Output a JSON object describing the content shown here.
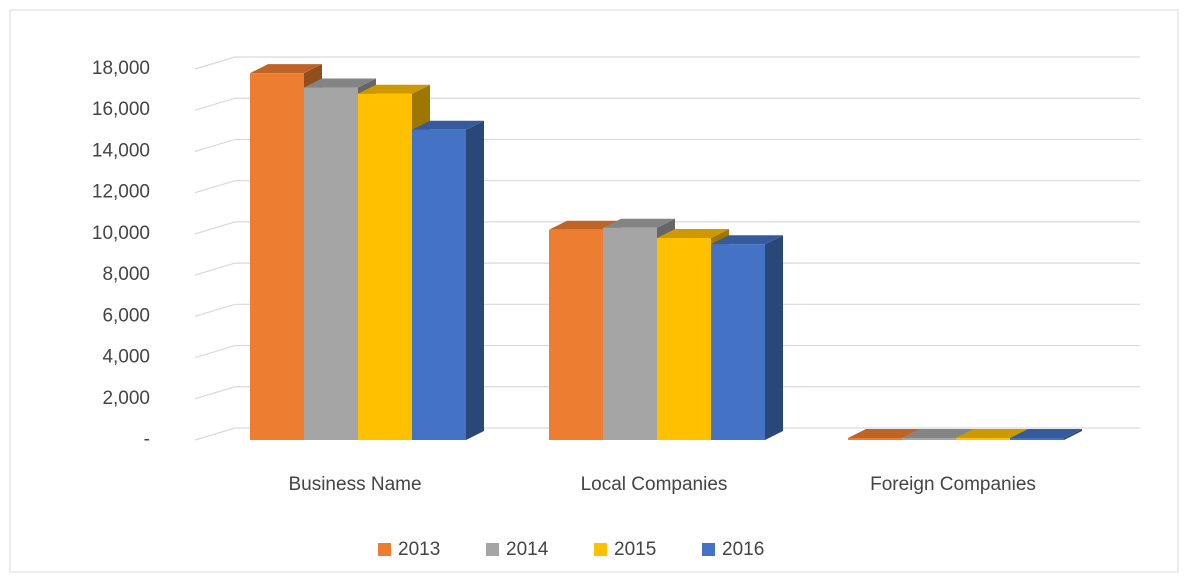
{
  "chart_data": {
    "type": "bar3d",
    "categories": [
      "Business Name",
      "Local Companies",
      "Foreign Companies"
    ],
    "series": [
      {
        "name": "2013",
        "color": "#ed7d31",
        "values": [
          17800,
          10200,
          100
        ]
      },
      {
        "name": "2014",
        "color": "#a5a5a5",
        "values": [
          17100,
          10300,
          100
        ]
      },
      {
        "name": "2015",
        "color": "#ffc000",
        "values": [
          16800,
          9800,
          100
        ]
      },
      {
        "name": "2016",
        "color": "#4472c4",
        "values": [
          15050,
          9500,
          100
        ]
      }
    ],
    "ylim": [
      0,
      18000
    ],
    "yticks": [
      {
        "value": 0,
        "label": "-"
      },
      {
        "value": 2000,
        "label": "2,000"
      },
      {
        "value": 4000,
        "label": "4,000"
      },
      {
        "value": 6000,
        "label": "6,000"
      },
      {
        "value": 8000,
        "label": "8,000"
      },
      {
        "value": 10000,
        "label": "10,000"
      },
      {
        "value": 12000,
        "label": "12,000"
      },
      {
        "value": 14000,
        "label": "14,000"
      },
      {
        "value": 16000,
        "label": "16,000"
      },
      {
        "value": 18000,
        "label": "18,000"
      }
    ],
    "grid": true,
    "legend": "bottom"
  }
}
